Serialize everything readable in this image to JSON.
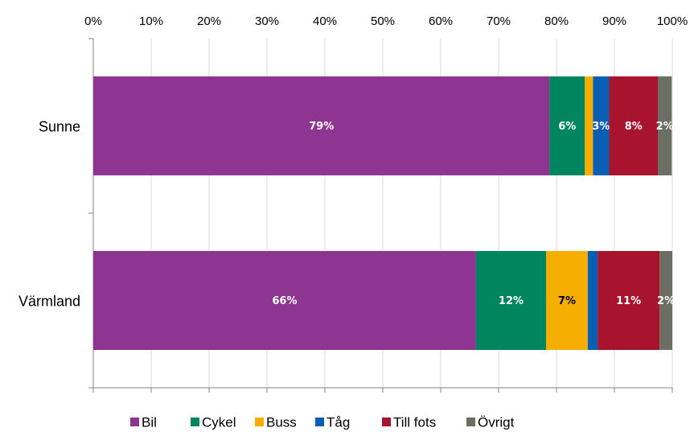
{
  "chart_data": {
    "type": "stacked_barh",
    "categories": [
      "Sunne",
      "Värmland"
    ],
    "series": [
      {
        "name": "Bil",
        "color": "#8e3591",
        "values": [
          78.8,
          66.1
        ],
        "value_labels": [
          "79%",
          "66%"
        ]
      },
      {
        "name": "Cykel",
        "color": "#00855f",
        "values": [
          6.1,
          12.1
        ],
        "value_labels": [
          "6%",
          "12%"
        ]
      },
      {
        "name": "Buss",
        "color": "#f6ae00",
        "values": [
          1.4,
          7.2
        ],
        "value_labels": [
          null,
          "7%"
        ],
        "label_color": "#000000"
      },
      {
        "name": "Tåg",
        "color": "#0a5fb4",
        "values": [
          2.8,
          1.7
        ],
        "value_labels": [
          "3%",
          null
        ]
      },
      {
        "name": "Till fots",
        "color": "#a8142e",
        "values": [
          8.4,
          10.7
        ],
        "value_labels": [
          "8%",
          "11%"
        ]
      },
      {
        "name": "Övrigt",
        "color": "#6d6e63",
        "values": [
          2.4,
          2.2
        ],
        "value_labels": [
          "2%",
          "2%"
        ]
      }
    ],
    "xlim": [
      0,
      100
    ],
    "xticks": [
      {
        "value": 0,
        "label": "0%"
      },
      {
        "value": 10,
        "label": "10%"
      },
      {
        "value": 20,
        "label": "20%"
      },
      {
        "value": 30,
        "label": "30%"
      },
      {
        "value": 40,
        "label": "40%"
      },
      {
        "value": 50,
        "label": "50%"
      },
      {
        "value": 60,
        "label": "60%"
      },
      {
        "value": 70,
        "label": "70%"
      },
      {
        "value": 80,
        "label": "80%"
      },
      {
        "value": 90,
        "label": "90%"
      },
      {
        "value": 100,
        "label": "100%"
      }
    ],
    "grid": true,
    "legend": "bottom"
  }
}
